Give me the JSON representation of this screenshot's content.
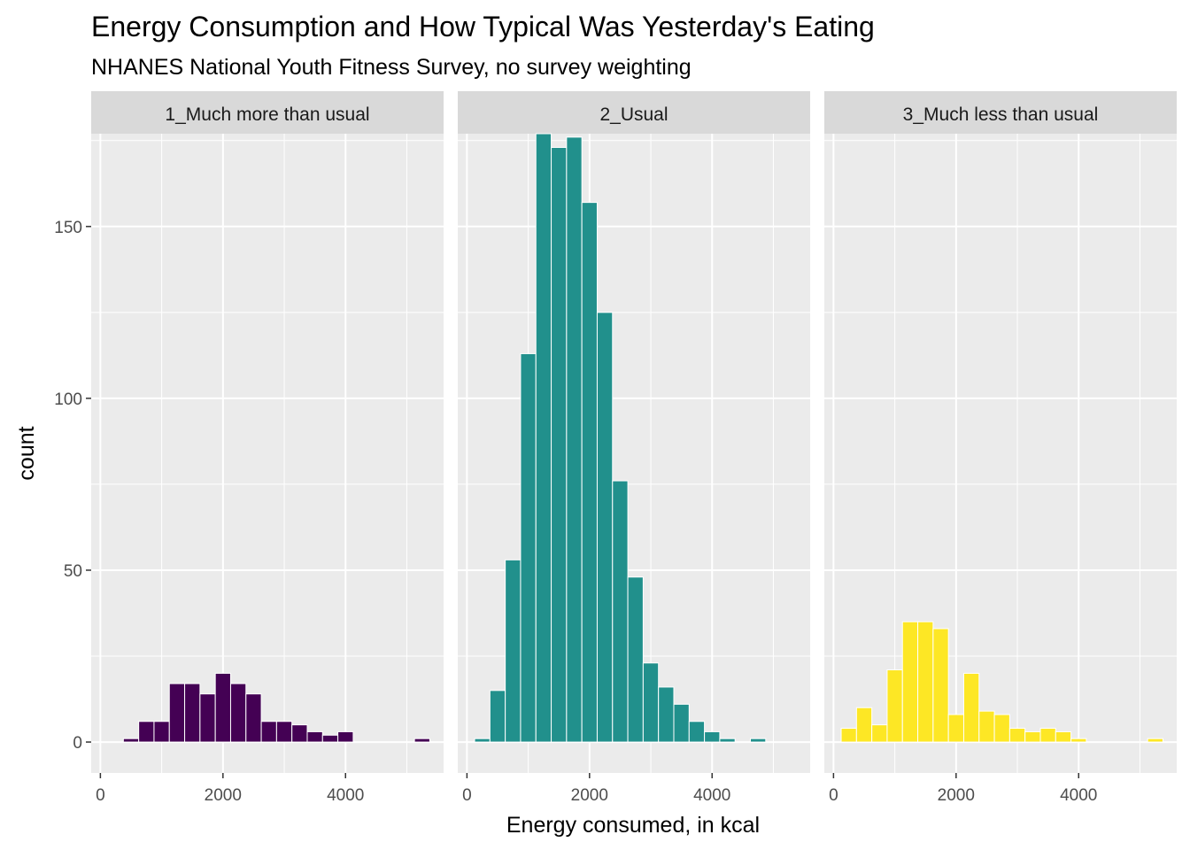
{
  "chart_data": {
    "type": "bar",
    "title": "Energy Consumption and How Typical Was Yesterday's Eating",
    "subtitle": "NHANES National Youth Fitness Survey, no survey weighting",
    "xlabel": "Energy consumed, in kcal",
    "ylabel": "count",
    "xlim": [
      -150,
      5600
    ],
    "ylim": [
      -9,
      177
    ],
    "x_ticks": [
      0,
      2000,
      4000
    ],
    "y_ticks": [
      0,
      50,
      100,
      150
    ],
    "grid": true,
    "legend": "none",
    "bin_width": 250,
    "panels": [
      {
        "label": "1_Much more than usual",
        "color": "#440154",
        "bins": [
          {
            "x": 500,
            "count": 1
          },
          {
            "x": 750,
            "count": 6
          },
          {
            "x": 1000,
            "count": 6
          },
          {
            "x": 1250,
            "count": 17
          },
          {
            "x": 1500,
            "count": 17
          },
          {
            "x": 1750,
            "count": 14
          },
          {
            "x": 2000,
            "count": 20
          },
          {
            "x": 2250,
            "count": 17
          },
          {
            "x": 2500,
            "count": 14
          },
          {
            "x": 2750,
            "count": 6
          },
          {
            "x": 3000,
            "count": 6
          },
          {
            "x": 3250,
            "count": 5
          },
          {
            "x": 3500,
            "count": 3
          },
          {
            "x": 3750,
            "count": 2
          },
          {
            "x": 4000,
            "count": 3
          },
          {
            "x": 5250,
            "count": 1
          }
        ]
      },
      {
        "label": "2_Usual",
        "color": "#21908C",
        "bins": [
          {
            "x": 250,
            "count": 1
          },
          {
            "x": 500,
            "count": 15
          },
          {
            "x": 750,
            "count": 53
          },
          {
            "x": 1000,
            "count": 113
          },
          {
            "x": 1250,
            "count": 177
          },
          {
            "x": 1500,
            "count": 173
          },
          {
            "x": 1750,
            "count": 176
          },
          {
            "x": 2000,
            "count": 157
          },
          {
            "x": 2250,
            "count": 125
          },
          {
            "x": 2500,
            "count": 76
          },
          {
            "x": 2750,
            "count": 48
          },
          {
            "x": 3000,
            "count": 23
          },
          {
            "x": 3250,
            "count": 16
          },
          {
            "x": 3500,
            "count": 11
          },
          {
            "x": 3750,
            "count": 6
          },
          {
            "x": 4000,
            "count": 3
          },
          {
            "x": 4250,
            "count": 1
          },
          {
            "x": 4750,
            "count": 1
          }
        ]
      },
      {
        "label": "3_Much less than usual",
        "color": "#FDE725",
        "bins": [
          {
            "x": 250,
            "count": 4
          },
          {
            "x": 500,
            "count": 10
          },
          {
            "x": 750,
            "count": 5
          },
          {
            "x": 1000,
            "count": 21
          },
          {
            "x": 1250,
            "count": 35
          },
          {
            "x": 1500,
            "count": 35
          },
          {
            "x": 1750,
            "count": 33
          },
          {
            "x": 2000,
            "count": 8
          },
          {
            "x": 2250,
            "count": 20
          },
          {
            "x": 2500,
            "count": 9
          },
          {
            "x": 2750,
            "count": 8
          },
          {
            "x": 3000,
            "count": 4
          },
          {
            "x": 3250,
            "count": 3
          },
          {
            "x": 3500,
            "count": 4
          },
          {
            "x": 3750,
            "count": 3
          },
          {
            "x": 4000,
            "count": 1
          },
          {
            "x": 5250,
            "count": 1
          }
        ]
      }
    ]
  }
}
